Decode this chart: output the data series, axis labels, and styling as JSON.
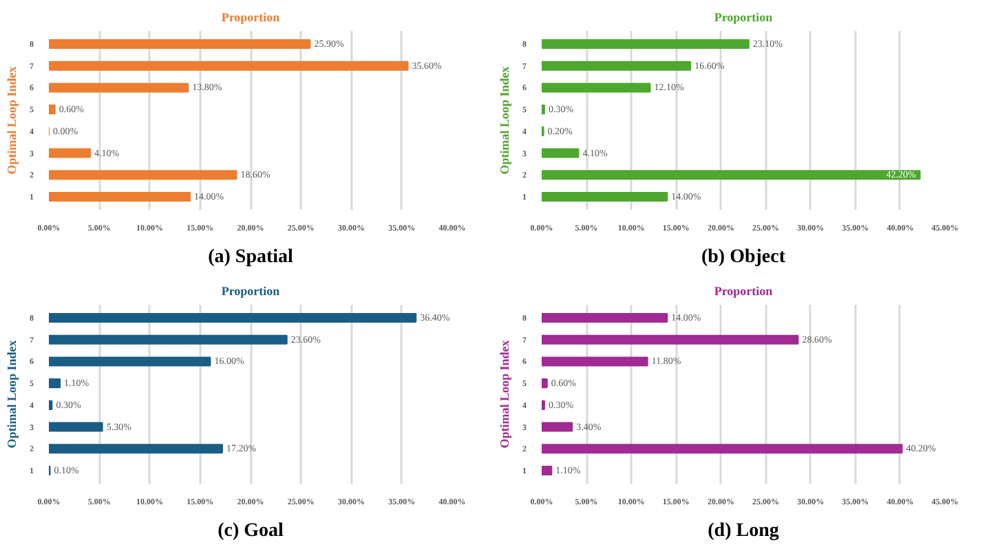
{
  "chart_data": [
    {
      "type": "bar",
      "orientation": "horizontal",
      "title": "Proportion",
      "ylabel": "Optimal Loop Index",
      "annotations": [
        "(a) Spatial"
      ],
      "categories": [
        "8",
        "7",
        "6",
        "5",
        "4",
        "3",
        "2",
        "1"
      ],
      "color": "#ed7d31",
      "values": [
        25.9,
        35.6,
        13.8,
        0.6,
        0.0,
        4.1,
        18.6,
        14.0
      ],
      "value_labels": [
        "25.90%",
        "35.60%",
        "13.80%",
        "0.60%",
        "0.00%",
        "4.10%",
        "18.60%",
        "14.00%"
      ],
      "xlim": [
        0,
        40
      ],
      "xticks": [
        {
          "value": 0,
          "label": "0.00%"
        },
        {
          "value": 5,
          "label": "5.00%"
        },
        {
          "value": 10,
          "label": "10.00%"
        },
        {
          "value": 15,
          "label": "15.00%"
        },
        {
          "value": 20,
          "label": "20.00%"
        },
        {
          "value": 25,
          "label": "25.00%"
        },
        {
          "value": 30,
          "label": "30.00%"
        },
        {
          "value": 35,
          "label": "35.00%"
        },
        {
          "value": 40,
          "label": "40.00%"
        }
      ],
      "grid": "x"
    },
    {
      "type": "bar",
      "orientation": "horizontal",
      "title": "Proportion",
      "ylabel": "Optimal Loop Index",
      "annotations": [
        "(b) Object"
      ],
      "categories": [
        "8",
        "7",
        "6",
        "5",
        "4",
        "3",
        "2",
        "1"
      ],
      "color": "#4ea72e",
      "values": [
        23.1,
        16.6,
        12.1,
        0.3,
        0.2,
        4.1,
        42.2,
        14.0
      ],
      "value_labels": [
        "23.10%",
        "16.60%",
        "12.10%",
        "0.30%",
        "0.20%",
        "4.10%",
        "42.20%",
        "14.00%"
      ],
      "xlim": [
        0,
        45
      ],
      "xticks": [
        {
          "value": 0,
          "label": "0.00%"
        },
        {
          "value": 5,
          "label": "5.00%"
        },
        {
          "value": 10,
          "label": "10.00%"
        },
        {
          "value": 15,
          "label": "15.00%"
        },
        {
          "value": 20,
          "label": "20.00%"
        },
        {
          "value": 25,
          "label": "25.00%"
        },
        {
          "value": 30,
          "label": "30.00%"
        },
        {
          "value": 35,
          "label": "35.00%"
        },
        {
          "value": 40,
          "label": "40.00%"
        },
        {
          "value": 45,
          "label": "45.00%"
        }
      ],
      "grid": "x"
    },
    {
      "type": "bar",
      "orientation": "horizontal",
      "title": "Proportion",
      "ylabel": "Optimal Loop Index",
      "annotations": [
        "(c) Goal"
      ],
      "categories": [
        "8",
        "7",
        "6",
        "5",
        "4",
        "3",
        "2",
        "1"
      ],
      "color": "#1a5e85",
      "values": [
        36.4,
        23.6,
        16.0,
        1.1,
        0.3,
        5.3,
        17.2,
        0.1
      ],
      "value_labels": [
        "36.40%",
        "23.60%",
        "16.00%",
        "1.10%",
        "0.30%",
        "5.30%",
        "17.20%",
        "0.10%"
      ],
      "xlim": [
        0,
        40
      ],
      "xticks": [
        {
          "value": 0,
          "label": "0.00%"
        },
        {
          "value": 5,
          "label": "5.00%"
        },
        {
          "value": 10,
          "label": "10.00%"
        },
        {
          "value": 15,
          "label": "15.00%"
        },
        {
          "value": 20,
          "label": "20.00%"
        },
        {
          "value": 25,
          "label": "25.00%"
        },
        {
          "value": 30,
          "label": "30.00%"
        },
        {
          "value": 35,
          "label": "35.00%"
        },
        {
          "value": 40,
          "label": "40.00%"
        }
      ],
      "grid": "x"
    },
    {
      "type": "bar",
      "orientation": "horizontal",
      "title": "Proportion",
      "ylabel": "Optimal Loop Index",
      "annotations": [
        "(d) Long"
      ],
      "categories": [
        "8",
        "7",
        "6",
        "5",
        "4",
        "3",
        "2",
        "1"
      ],
      "color": "#a02b93",
      "values": [
        14.0,
        28.6,
        11.8,
        0.6,
        0.3,
        3.4,
        40.2,
        1.1
      ],
      "value_labels": [
        "14.00%",
        "28.60%",
        "11.80%",
        "0.60%",
        "0.30%",
        "3.40%",
        "40.20%",
        "1.10%"
      ],
      "xlim": [
        0,
        45
      ],
      "xticks": [
        {
          "value": 0,
          "label": "0.00%"
        },
        {
          "value": 5,
          "label": "5.00%"
        },
        {
          "value": 10,
          "label": "10.00%"
        },
        {
          "value": 15,
          "label": "15.00%"
        },
        {
          "value": 20,
          "label": "20.00%"
        },
        {
          "value": 25,
          "label": "25.00%"
        },
        {
          "value": 30,
          "label": "30.00%"
        },
        {
          "value": 35,
          "label": "35.00%"
        },
        {
          "value": 40,
          "label": "40.00%"
        },
        {
          "value": 45,
          "label": "45.00%"
        }
      ],
      "grid": "x"
    }
  ]
}
